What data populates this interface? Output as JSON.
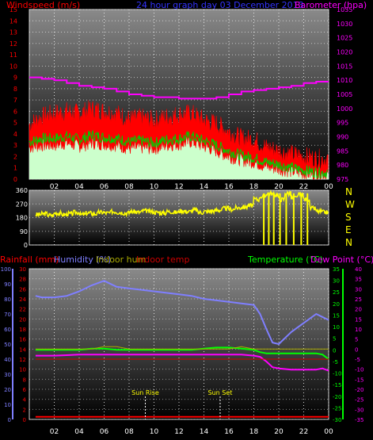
{
  "header": {
    "windspeed_label": "Windspeed (m/s)",
    "title": "24 hour graph day  03 December 2013",
    "barometer_label": "Barometer (hpa)"
  },
  "time_ticks": [
    "02",
    "04",
    "06",
    "08",
    "10",
    "12",
    "14",
    "16",
    "18",
    "20",
    "22",
    "00"
  ],
  "colors": {
    "gust": "#ff0000",
    "avg_wind": "#00cc00",
    "wind_fill": "#ccffcc",
    "barometer": "#ff00ff",
    "direction": "#ffff00",
    "rainfall": "#ff0000",
    "humidity": "#7f7fff",
    "indoor_hum": "#aaaa00",
    "indoor_temp": "#cc0000",
    "temperature": "#00ff00",
    "dewpoint": "#ff00ff"
  },
  "chart_data": [
    {
      "type": "area",
      "panel": "wind",
      "y_left": {
        "label": "Windspeed (m/s)",
        "ticks": [
          "0",
          "1",
          "2",
          "3",
          "4",
          "5",
          "6",
          "7",
          "8",
          "9",
          "10",
          "11",
          "12",
          "13",
          "14",
          "15"
        ],
        "range": [
          0,
          15
        ]
      },
      "y_right": {
        "label": "Barometer (hpa)",
        "ticks": [
          "975",
          "980",
          "985",
          "990",
          "995",
          "1000",
          "1005",
          "1010",
          "1015",
          "1020",
          "1025",
          "1030",
          "1035"
        ],
        "range": [
          975,
          1035
        ]
      },
      "x_hours": [
        1,
        2,
        3,
        4,
        5,
        6,
        7,
        8,
        9,
        10,
        11,
        12,
        13,
        14,
        15,
        16,
        17,
        18,
        19,
        20,
        21,
        22,
        23,
        24
      ],
      "series": [
        {
          "values_gust": [
            4.8,
            5.5,
            5.8,
            6.0,
            5.8,
            6.2,
            6.0,
            5.8,
            5.3,
            5.4,
            5.2,
            5.5,
            5.7,
            5.8,
            5.2,
            4.9,
            4.2,
            3.6,
            3.5,
            2.8,
            2.5,
            2.2,
            2.0,
            1.8
          ]
        },
        {
          "values_avg": [
            3.3,
            3.6,
            3.6,
            3.8,
            3.5,
            3.9,
            3.7,
            3.6,
            3.3,
            3.4,
            3.2,
            3.5,
            3.6,
            3.8,
            3.4,
            3.0,
            2.5,
            2.1,
            1.9,
            1.5,
            1.3,
            1.0,
            0.8,
            0.6
          ]
        },
        {
          "values_fill_top": [
            2.8,
            3.0,
            3.0,
            3.2,
            2.9,
            3.2,
            3.1,
            3.0,
            2.7,
            2.8,
            2.7,
            3.0,
            3.1,
            3.3,
            2.9,
            2.5,
            2.0,
            1.7,
            1.5,
            1.1,
            0.9,
            0.7,
            0.5,
            0.4
          ]
        },
        {
          "values_barometer": [
            1011,
            1010.5,
            1010,
            1009,
            1008,
            1007.5,
            1007,
            1006,
            1005,
            1004.5,
            1004,
            1004,
            1003.5,
            1003.5,
            1003.5,
            1004,
            1005,
            1006,
            1006.5,
            1007,
            1007.5,
            1008,
            1009,
            1009.5
          ]
        }
      ]
    },
    {
      "type": "line",
      "panel": "direction",
      "y_left": {
        "ticks": [
          "0",
          "90",
          "180",
          "270",
          "360"
        ],
        "range": [
          0,
          360
        ]
      },
      "y_right_letters": [
        "N",
        "W",
        "S",
        "E",
        "N"
      ],
      "x_hours": [
        0.5,
        1,
        1.5,
        2,
        2.5,
        3,
        3.5,
        4,
        4.5,
        5,
        5.5,
        6,
        6.5,
        7,
        7.5,
        8,
        8.5,
        9,
        9.5,
        10,
        10.5,
        11,
        11.5,
        12,
        12.5,
        13,
        13.5,
        14,
        14.5,
        15,
        15.5,
        16,
        16.5,
        17,
        17.5,
        18,
        18.5,
        19,
        19.5,
        20,
        20.5,
        21,
        21.5,
        22,
        22.5,
        23,
        23.5,
        24
      ],
      "values": [
        200,
        205,
        195,
        210,
        200,
        205,
        215,
        200,
        210,
        205,
        215,
        210,
        220,
        215,
        210,
        220,
        215,
        225,
        220,
        215,
        210,
        220,
        215,
        225,
        220,
        230,
        215,
        220,
        225,
        230,
        240,
        235,
        245,
        250,
        260,
        300,
        320,
        340,
        330,
        300,
        340,
        310,
        330,
        300,
        240,
        220,
        215,
        210
      ],
      "dropouts_hours": [
        18.8,
        19.2,
        19.6,
        20.1,
        20.6,
        21.2,
        21.8,
        22.3
      ]
    },
    {
      "type": "line",
      "panel": "temperature",
      "y_far_left": {
        "label": "Rainfall (mm)",
        "ticks": [
          "0",
          "2",
          "4",
          "6",
          "8",
          "10",
          "12",
          "14",
          "16",
          "18",
          "20",
          "22",
          "24",
          "26",
          "28",
          "30"
        ],
        "range": [
          0,
          30
        ]
      },
      "y_left": {
        "label": "Humidity (%)",
        "ticks": [
          "0",
          "10",
          "20",
          "30",
          "40",
          "50",
          "60",
          "70",
          "80",
          "90",
          "100"
        ],
        "range": [
          0,
          100
        ]
      },
      "y_right": {
        "label": "Temperature (°C)",
        "ticks": [
          "-30",
          "-25",
          "-20",
          "-15",
          "-10",
          "-5",
          "0",
          "5",
          "10",
          "15",
          "20",
          "25",
          "30",
          "35"
        ],
        "range": [
          -30,
          35
        ]
      },
      "y_far_right": {
        "label": "Dew Point (°C)",
        "ticks": [
          "-35",
          "-30",
          "-25",
          "-20",
          "-15",
          "-10",
          "-5",
          "0",
          "5",
          "10",
          "15",
          "20",
          "25",
          "30",
          "35",
          "40"
        ],
        "range": [
          -35,
          40
        ]
      },
      "legend": [
        "Rainfall (mm)",
        "Humidity (%)",
        "Indoor hum",
        "Indoor temp",
        "Temperature (°C)",
        "Dew Point (°C)"
      ],
      "annotations": [
        {
          "text": "Sun Rise",
          "hour": 9.3
        },
        {
          "text": "Sun Set",
          "hour": 15.3
        }
      ],
      "x_hours": [
        0.5,
        1,
        2,
        3,
        4,
        5,
        6,
        7,
        8,
        9,
        10,
        11,
        12,
        13,
        14,
        15,
        16,
        17,
        18,
        18.5,
        19,
        19.5,
        20,
        21,
        22,
        23,
        23.5,
        24
      ],
      "series": [
        {
          "name": "Humidity (%)",
          "values": [
            82,
            81,
            81,
            82,
            85,
            89,
            92,
            88,
            87,
            86,
            85,
            84,
            83,
            82,
            80,
            79,
            78,
            77,
            76,
            70,
            60,
            51,
            50,
            58,
            64,
            70,
            68,
            66
          ]
        },
        {
          "name": "Temperature (°C)",
          "values": [
            0,
            0,
            0,
            0,
            0,
            0.5,
            0.5,
            0,
            0,
            0,
            0,
            0,
            0,
            0,
            0.5,
            1,
            1,
            0.5,
            0,
            -1,
            -1.5,
            -1.5,
            -1.5,
            -1.5,
            -1.5,
            -1.5,
            -2,
            -4
          ]
        },
        {
          "name": "Dew Point (°C)",
          "values": [
            -2.5,
            -2.5,
            -2.5,
            -2.3,
            -2,
            -2,
            -2,
            -2,
            -2,
            -2,
            -2,
            -2,
            -2,
            -2,
            -2,
            -2,
            -2,
            -2,
            -2.5,
            -3,
            -5,
            -7.5,
            -8,
            -8.5,
            -8.5,
            -8.5,
            -8,
            -9
          ]
        },
        {
          "name": "Indoor temp",
          "values": [
            12,
            12,
            12,
            12,
            12,
            12,
            12,
            12,
            12,
            12,
            12,
            12,
            12,
            12,
            12,
            12,
            12,
            12,
            12,
            12,
            12,
            12,
            12,
            12,
            12,
            12,
            12,
            12
          ]
        },
        {
          "name": "Indoor hum",
          "values": [
            14,
            14,
            14,
            14,
            14,
            14,
            14.5,
            14.5,
            14,
            14,
            14,
            14,
            14,
            14,
            14,
            14,
            14,
            14.5,
            14,
            14,
            14,
            14,
            14,
            14,
            14,
            14,
            14,
            14
          ]
        },
        {
          "name": "Rainfall (mm)",
          "values": [
            0.5,
            0.5,
            0.5,
            0.5,
            0.5,
            0.5,
            0.5,
            0.5,
            0.5,
            0.5,
            0.5,
            0.5,
            0.5,
            0.5,
            0.5,
            0.5,
            0.5,
            0.5,
            0.5,
            0.5,
            0.5,
            0.5,
            0.5,
            0.5,
            0.5,
            0.5,
            0.5,
            0.5
          ]
        }
      ]
    }
  ]
}
